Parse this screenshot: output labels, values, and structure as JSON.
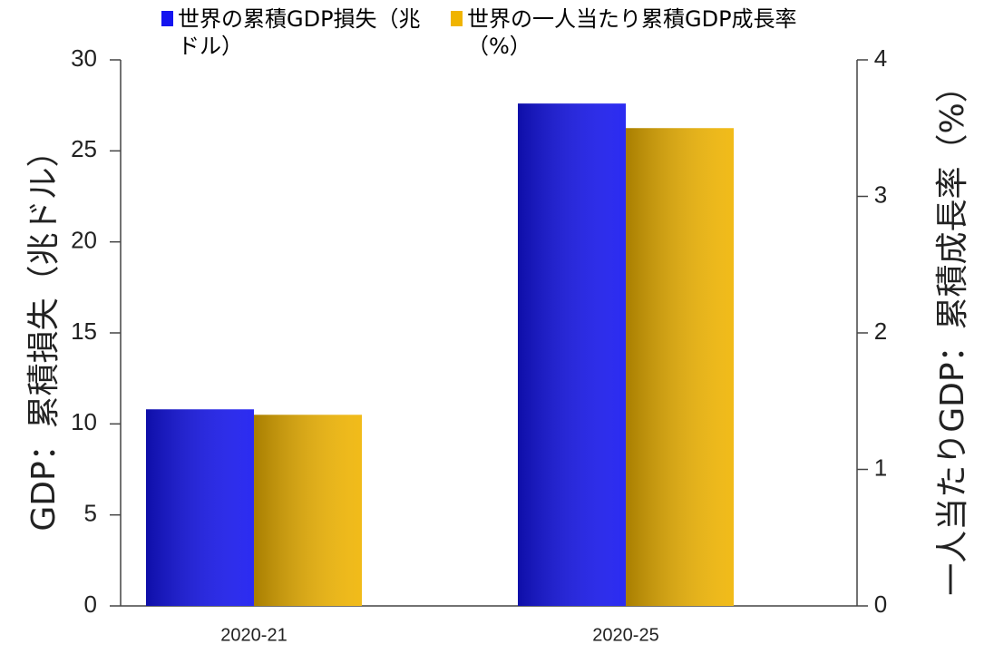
{
  "chart_data": {
    "type": "bar",
    "ylabel": "GDP：累積損失（兆ドル）",
    "y2label": "一人当たりGDP：累積成長率（%）",
    "categories": [
      "2020-21",
      "2020-25"
    ],
    "series": [
      {
        "name": "世界の累積GDP損失（兆ドル）",
        "color": "#1414f0",
        "values": [
          10.8,
          27.6
        ]
      },
      {
        "name": "世界の一人当たり累積GDP成長率（%）",
        "color": "#f0b400",
        "values": [
          1.4,
          3.5
        ],
        "axis": "y2"
      }
    ],
    "ylim": [
      0,
      30
    ],
    "yticks": [
      0,
      5,
      10,
      15,
      20,
      25,
      30
    ],
    "y2lim": [
      0,
      4
    ],
    "y2ticks": [
      0,
      1,
      2,
      3,
      4
    ]
  }
}
